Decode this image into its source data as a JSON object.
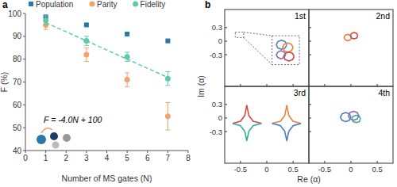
{
  "chart_data": [
    {
      "type": "scatter",
      "label": "a",
      "x_label": "Number of MS gates (N)",
      "y_label": "F (%)",
      "xlim": [
        0,
        8
      ],
      "ylim": [
        40,
        100
      ],
      "xticks": [
        0,
        1,
        2,
        3,
        4,
        5,
        6,
        7,
        8
      ],
      "yticks": [
        40,
        50,
        60,
        70,
        80,
        90,
        100
      ],
      "grid": false,
      "legend": "top",
      "annotations": [
        "F = -4.0N + 100"
      ],
      "series": [
        {
          "name": "Population",
          "color": "#2a78a8",
          "marker": "square",
          "x": [
            1,
            3,
            5,
            7
          ],
          "values": [
            98.5,
            95,
            91,
            88
          ]
        },
        {
          "name": "Parity",
          "color": "#f0a36a",
          "marker": "circle",
          "x": [
            1,
            3,
            5,
            7
          ],
          "values": [
            95,
            82,
            71,
            55
          ],
          "errors": [
            2,
            3,
            3,
            6
          ]
        },
        {
          "name": "Fidelity",
          "color": "#5fc9aa",
          "marker": "circle",
          "x": [
            1,
            3,
            5,
            7
          ],
          "values": [
            97,
            88,
            81,
            71.5
          ],
          "errors": [
            2,
            2,
            2,
            3
          ]
        },
        {
          "type": "line",
          "line_style": "dashed",
          "color": "#5fc9aa",
          "x": [
            1,
            7
          ],
          "values": [
            96,
            72
          ]
        }
      ]
    },
    {
      "type": "line",
      "label": "b",
      "x_label": "Re (α)",
      "y_label": "Im (α)",
      "subplots": [
        {
          "title": "1st",
          "xlim": [
            -0.8,
            0.8
          ],
          "ylim": [
            -1,
            0.7
          ],
          "xticks": [
            -0.5,
            0,
            0.5
          ],
          "yticks": [
            -0.3,
            0,
            0.3
          ],
          "tick_labels": "y",
          "series": [
            {
              "color": "#4a7fc0",
              "x": [
                0.38,
                0.35,
                0.28,
                0.21,
                0.18,
                0.21,
                0.28,
                0.35,
                0.38
              ],
              "values": [
                -0.08,
                -0.01,
                0.02,
                -0.01,
                -0.08,
                -0.15,
                -0.18,
                -0.15,
                -0.08
              ]
            },
            {
              "color": "#e8833a",
              "x": [
                0.5,
                0.47,
                0.4,
                0.33,
                0.3,
                0.33,
                0.4,
                0.47,
                0.5
              ],
              "values": [
                -0.14,
                -0.07,
                -0.04,
                -0.07,
                -0.14,
                -0.21,
                -0.24,
                -0.21,
                -0.14
              ]
            },
            {
              "color": "#d9453d",
              "x": [
                0.52,
                0.49,
                0.42,
                0.35,
                0.32,
                0.35,
                0.42,
                0.49,
                0.52
              ],
              "values": [
                -0.34,
                -0.27,
                -0.24,
                -0.27,
                -0.34,
                -0.41,
                -0.44,
                -0.41,
                -0.34
              ]
            },
            {
              "color": "#8b6bbf",
              "x": [
                0.36,
                0.33,
                0.27,
                0.21,
                0.18,
                0.21,
                0.27,
                0.33,
                0.36
              ],
              "values": [
                -0.3,
                -0.24,
                -0.21,
                -0.24,
                -0.3,
                -0.36,
                -0.39,
                -0.36,
                -0.3
              ]
            }
          ]
        },
        {
          "title": "2nd",
          "xlim": [
            -0.8,
            0.8
          ],
          "ylim": [
            -1,
            0.7
          ],
          "xticks": [
            -0.5,
            0,
            0.5
          ],
          "yticks": [
            -0.3,
            0,
            0.3
          ],
          "tick_labels": false,
          "series": [
            {
              "color": "#e8833a",
              "x": [
                0.01,
                -0.01,
                -0.06,
                -0.11,
                -0.13,
                -0.11,
                -0.06,
                -0.01,
                0.01
              ],
              "values": [
                0.08,
                0.13,
                0.15,
                0.13,
                0.08,
                0.03,
                0.01,
                0.03,
                0.08
              ]
            },
            {
              "color": "#d9453d",
              "x": [
                0.13,
                0.11,
                0.06,
                0.01,
                -0.01,
                0.01,
                0.06,
                0.11,
                0.13
              ],
              "values": [
                0.12,
                0.17,
                0.19,
                0.17,
                0.12,
                0.07,
                0.05,
                0.07,
                0.12
              ]
            }
          ]
        },
        {
          "title": "3rd",
          "xlim": [
            -0.8,
            0.8
          ],
          "ylim": [
            -1,
            0.7
          ],
          "xticks": [
            -0.5,
            0,
            0.5
          ],
          "yticks": [
            -0.3,
            0,
            0.3
          ],
          "tick_labels": true,
          "series": [
            {
              "color": "#d9453d",
              "x": [
                -0.65,
                -0.5,
                -0.42,
                -0.38,
                -0.34,
                -0.26,
                -0.1
              ],
              "values": [
                -0.12,
                -0.07,
                0.05,
                0.28,
                0.05,
                -0.07,
                -0.12
              ]
            },
            {
              "color": "#3cab9f",
              "x": [
                -0.65,
                -0.5,
                -0.42,
                -0.38,
                -0.34,
                -0.26,
                -0.1
              ],
              "values": [
                -0.12,
                -0.17,
                -0.29,
                -0.5,
                -0.29,
                -0.17,
                -0.12
              ]
            },
            {
              "color": "#e8833a",
              "x": [
                0.1,
                0.26,
                0.34,
                0.38,
                0.42,
                0.5,
                0.65
              ],
              "values": [
                -0.12,
                -0.07,
                0.05,
                0.28,
                0.05,
                -0.07,
                -0.12
              ]
            },
            {
              "color": "#4a7fc0",
              "x": [
                0.1,
                0.26,
                0.34,
                0.38,
                0.42,
                0.5,
                0.65
              ],
              "values": [
                -0.12,
                -0.17,
                -0.29,
                -0.5,
                -0.29,
                -0.17,
                -0.12
              ]
            }
          ]
        },
        {
          "title": "4th",
          "xlim": [
            -0.8,
            0.8
          ],
          "ylim": [
            -1,
            0.7
          ],
          "xticks": [
            -0.5,
            0,
            0.5
          ],
          "yticks": [
            -0.3,
            0,
            0.3
          ],
          "tick_labels": "x",
          "series": [
            {
              "color": "#4a7fc0",
              "x": [
                0,
                -0.03,
                -0.1,
                -0.17,
                -0.2,
                -0.17,
                -0.1,
                -0.03,
                0
              ],
              "values": [
                0.02,
                0.09,
                0.12,
                0.09,
                0.02,
                -0.05,
                -0.08,
                -0.05,
                0.02
              ]
            },
            {
              "color": "#8b6bbf",
              "x": [
                0.15,
                0.12,
                0.05,
                -0.02,
                -0.05,
                -0.02,
                0.05,
                0.12,
                0.15
              ],
              "values": [
                0.05,
                0.12,
                0.15,
                0.12,
                0.05,
                -0.02,
                -0.05,
                -0.02,
                0.05
              ]
            },
            {
              "color": "#3cab9f",
              "x": [
                0.18,
                0.16,
                0.1,
                0.04,
                0.02,
                0.04,
                0.1,
                0.16,
                0.18
              ],
              "values": [
                -0.02,
                0.04,
                0.06,
                0.04,
                -0.02,
                -0.08,
                -0.1,
                -0.08,
                -0.02
              ]
            }
          ]
        }
      ]
    }
  ]
}
